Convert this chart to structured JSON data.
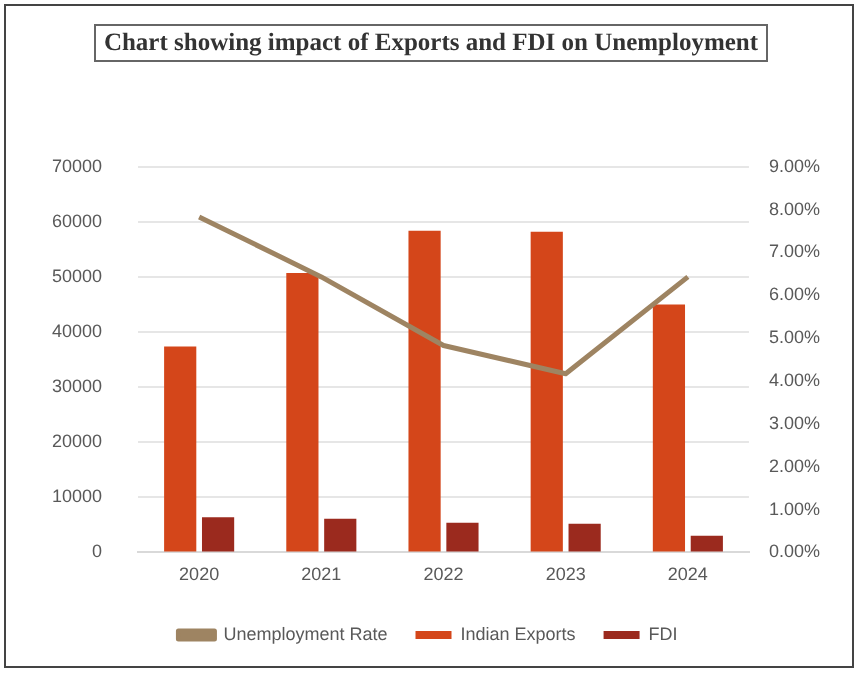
{
  "chart_data": {
    "type": "bar",
    "title": "Chart showing impact of Exports and FDI on Unemployment",
    "categories": [
      "2020",
      "2021",
      "2022",
      "2023",
      "2024"
    ],
    "series": [
      {
        "name": "Indian Exports",
        "color": "#d4461a",
        "values": [
          37400,
          50700,
          58400,
          58200,
          45000
        ]
      },
      {
        "name": "FDI",
        "color": "#9b2a1e",
        "values": [
          6400,
          6100,
          5400,
          5200,
          3000
        ]
      },
      {
        "name": "Unemployment Rate",
        "type": "line",
        "axis": "y2",
        "color": "#9e8462",
        "values": [
          7.83,
          6.43,
          4.83,
          4.17,
          6.43
        ]
      }
    ],
    "ylim": [
      0,
      70000
    ],
    "yticks": [
      0,
      10000,
      20000,
      30000,
      40000,
      50000,
      60000,
      70000
    ],
    "y2lim": [
      0,
      9
    ],
    "y2ticks": [
      {
        "value": 0,
        "label": "0.00%"
      },
      {
        "value": 1,
        "label": "1.00%"
      },
      {
        "value": 2,
        "label": "2.00%"
      },
      {
        "value": 3,
        "label": "3.00%"
      },
      {
        "value": 4,
        "label": "4.00%"
      },
      {
        "value": 5,
        "label": "5.00%"
      },
      {
        "value": 6,
        "label": "6.00%"
      },
      {
        "value": 7,
        "label": "7.00%"
      },
      {
        "value": 8,
        "label": "8.00%"
      },
      {
        "value": 9,
        "label": "9.00%"
      }
    ],
    "grid": "y",
    "legend": "bottom",
    "marker": "none"
  }
}
